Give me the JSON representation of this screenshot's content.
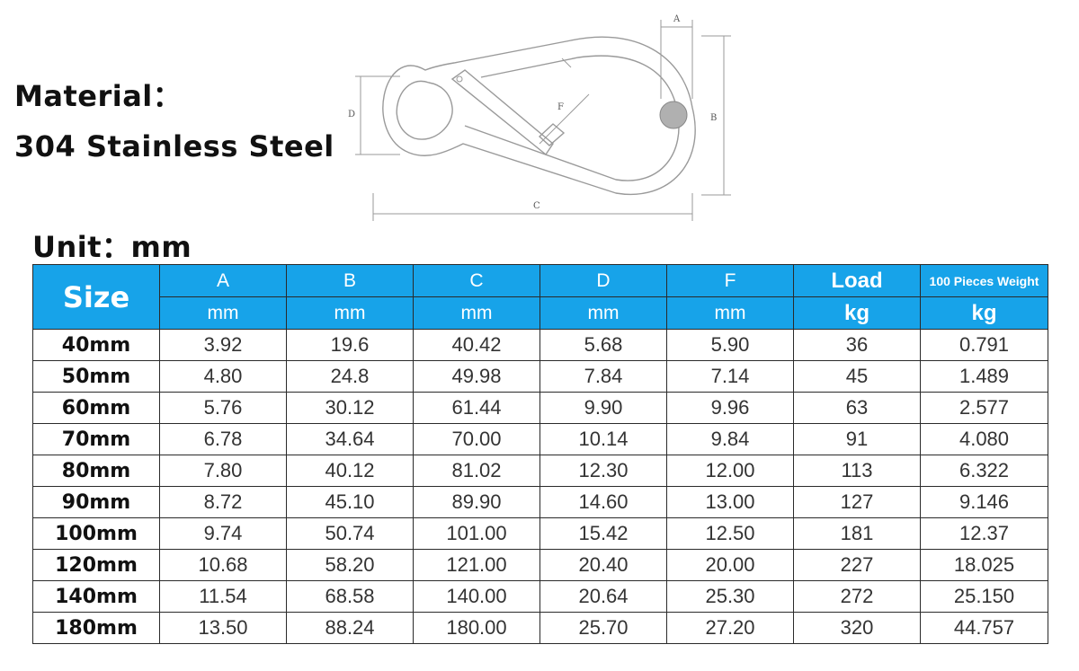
{
  "material": {
    "label": "Material：",
    "value": "304 Stainless Steel"
  },
  "unit": {
    "label": "Unit：mm"
  },
  "diagram": {
    "dim_labels": [
      "A",
      "B",
      "C",
      "D",
      "F"
    ]
  },
  "table": {
    "size_header": "Size",
    "columns": [
      {
        "name": "A",
        "unit": "mm"
      },
      {
        "name": "B",
        "unit": "mm"
      },
      {
        "name": "C",
        "unit": "mm"
      },
      {
        "name": "D",
        "unit": "mm"
      },
      {
        "name": "F",
        "unit": "mm"
      },
      {
        "name": "Load",
        "unit": "kg"
      },
      {
        "name": "100 Pieces Weight",
        "unit": "kg"
      }
    ],
    "rows": [
      {
        "size": "40mm",
        "values": [
          "3.92",
          "19.6",
          "40.42",
          "5.68",
          "5.90",
          "36",
          "0.791"
        ]
      },
      {
        "size": "50mm",
        "values": [
          "4.80",
          "24.8",
          "49.98",
          "7.84",
          "7.14",
          "45",
          "1.489"
        ]
      },
      {
        "size": "60mm",
        "values": [
          "5.76",
          "30.12",
          "61.44",
          "9.90",
          "9.96",
          "63",
          "2.577"
        ]
      },
      {
        "size": "70mm",
        "values": [
          "6.78",
          "34.64",
          "70.00",
          "10.14",
          "9.84",
          "91",
          "4.080"
        ]
      },
      {
        "size": "80mm",
        "values": [
          "7.80",
          "40.12",
          "81.02",
          "12.30",
          "12.00",
          "113",
          "6.322"
        ]
      },
      {
        "size": "90mm",
        "values": [
          "8.72",
          "45.10",
          "89.90",
          "14.60",
          "13.00",
          "127",
          "9.146"
        ]
      },
      {
        "size": "100mm",
        "values": [
          "9.74",
          "50.74",
          "101.00",
          "15.42",
          "12.50",
          "181",
          "12.37"
        ]
      },
      {
        "size": "120mm",
        "values": [
          "10.68",
          "58.20",
          "121.00",
          "20.40",
          "20.00",
          "227",
          "18.025"
        ]
      },
      {
        "size": "140mm",
        "values": [
          "11.54",
          "68.58",
          "140.00",
          "20.64",
          "25.30",
          "272",
          "25.150"
        ]
      },
      {
        "size": "180mm",
        "values": [
          "13.50",
          "88.24",
          "180.00",
          "25.70",
          "27.20",
          "320",
          "44.757"
        ]
      }
    ]
  },
  "colors": {
    "header_bg": "#17a3e9",
    "header_text": "#ffffff"
  }
}
